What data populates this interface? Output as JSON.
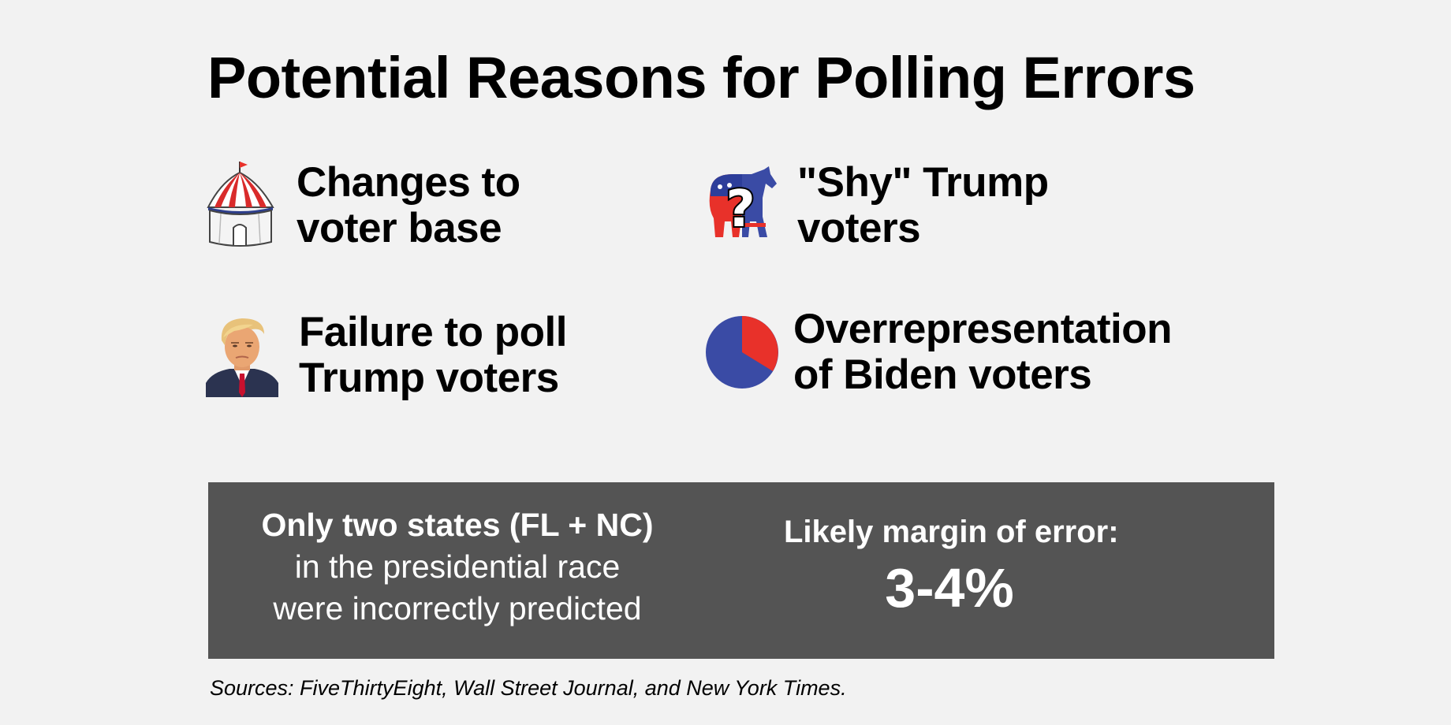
{
  "title": "Potential Reasons for Polling Errors",
  "reasons": [
    {
      "icon": "circus-tent-icon",
      "lines": [
        "Changes to",
        "voter base"
      ]
    },
    {
      "icon": "donkey-elephant-question-icon",
      "lines": [
        "\"Shy\" Trump",
        "voters"
      ]
    },
    {
      "icon": "trump-portrait-icon",
      "lines": [
        "Failure to poll",
        "Trump voters"
      ]
    },
    {
      "icon": "pie-chart-icon",
      "lines": [
        "Overrepresentation",
        "of Biden voters"
      ]
    }
  ],
  "callout": {
    "left_strong": "Only two states (FL + NC)",
    "left_lines": [
      "in the presidential race",
      "were incorrectly predicted"
    ],
    "right_heading": "Likely margin of error:",
    "right_value": "3-4%"
  },
  "sources": "Sources: FiveThirtyEight, Wall Street Journal, and New York Times.",
  "colors": {
    "background": "#f2f2f2",
    "callout_bg": "#545454",
    "red": "#e8312a",
    "blue": "#3a4ba5"
  }
}
